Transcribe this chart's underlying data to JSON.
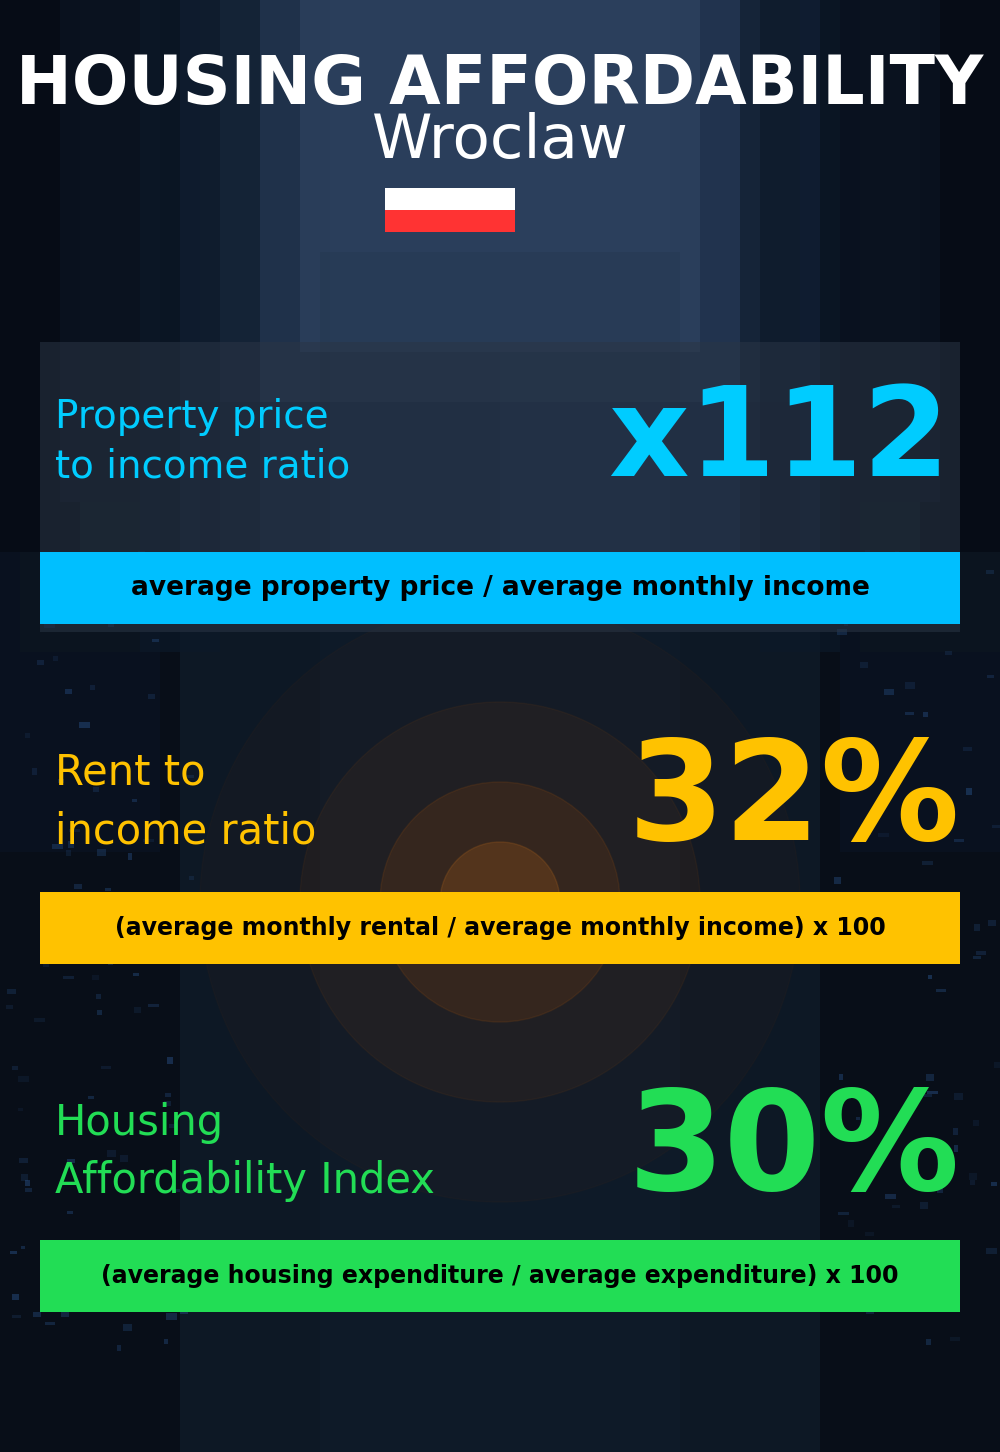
{
  "title_line1": "HOUSING AFFORDABILITY",
  "title_line2": "Wroclaw",
  "background_color": "#0a1520",
  "section1_label": "Property price\nto income ratio",
  "section1_value": "x112",
  "section1_label_color": "#00ccff",
  "section1_value_color": "#00ccff",
  "section1_banner_text": "average property price / average monthly income",
  "section1_banner_bg": "#00bfff",
  "section1_banner_text_color": "#000000",
  "section2_label": "Rent to\nincome ratio",
  "section2_value": "32%",
  "section2_label_color": "#ffc200",
  "section2_value_color": "#ffc200",
  "section2_banner_text": "(average monthly rental / average monthly income) x 100",
  "section2_banner_bg": "#ffc200",
  "section2_banner_text_color": "#000000",
  "section3_label": "Housing\nAffordability Index",
  "section3_value": "30%",
  "section3_label_color": "#22dd55",
  "section3_value_color": "#22dd55",
  "section3_banner_text": "(average housing expenditure / average expenditure) x 100",
  "section3_banner_bg": "#22dd55",
  "section3_banner_text_color": "#000000",
  "title_color": "#ffffff",
  "city_color": "#ffffff",
  "fig_width": 10.0,
  "fig_height": 14.52,
  "dpi": 100
}
